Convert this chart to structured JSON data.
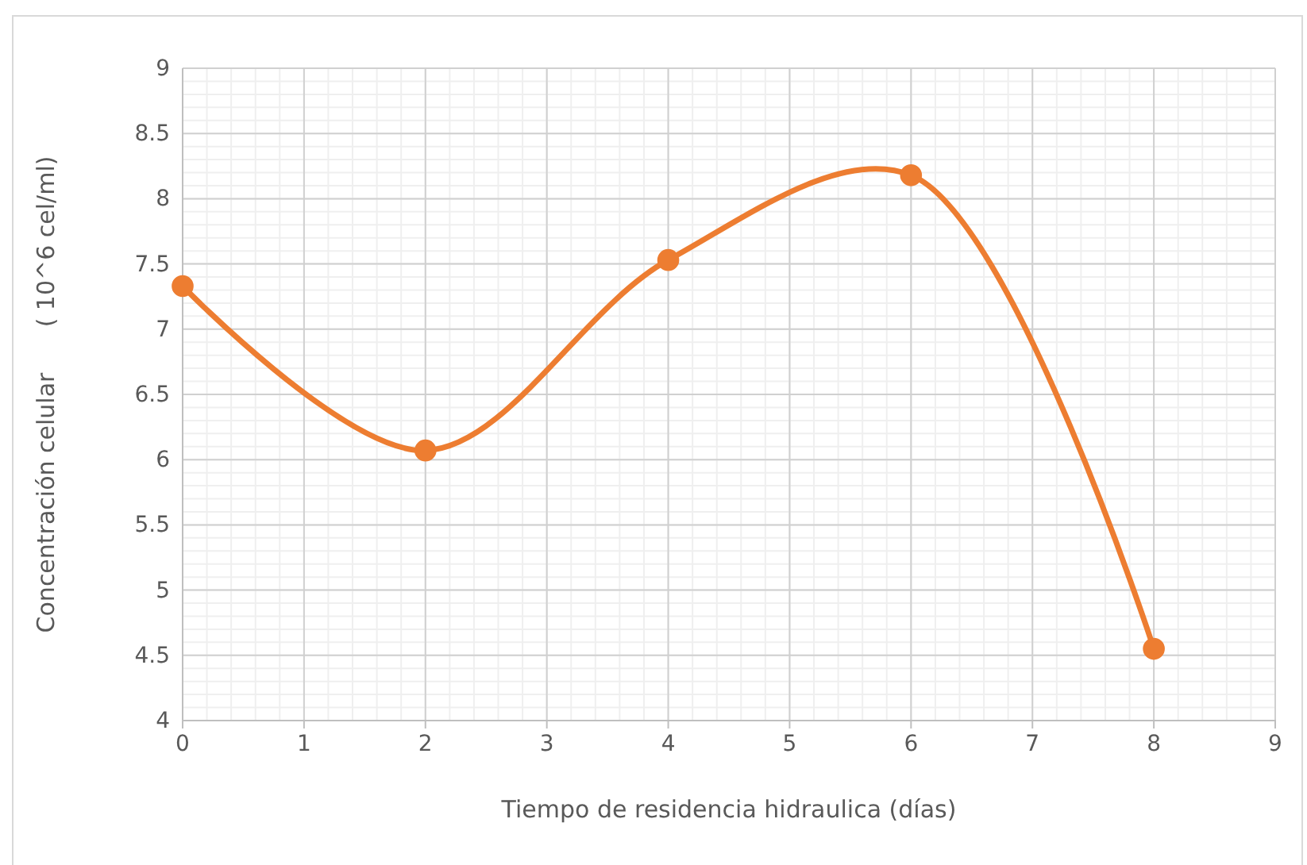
{
  "chart_data": {
    "type": "line",
    "xlabel": "Tiempo de residencia hidraulica (días)",
    "ylabel": "Concentración celular      ( 10^6 cel/ml)",
    "x": [
      0,
      2,
      4,
      6,
      8
    ],
    "series": [
      {
        "color": "#ed7d31",
        "values": [
          7.33,
          6.07,
          7.53,
          8.18,
          4.55
        ]
      }
    ],
    "xlim": [
      0,
      9
    ],
    "xticks": [
      0,
      1,
      2,
      3,
      4,
      5,
      6,
      7,
      8,
      9
    ],
    "ylim": [
      4,
      9
    ],
    "yticks": [
      4,
      {
        "value": 4.5,
        "label": "4.5"
      },
      5,
      {
        "value": 5.5,
        "label": "5.5"
      },
      6,
      {
        "value": 6.5,
        "label": "6.5"
      },
      7,
      {
        "value": 7.5,
        "label": "7.5"
      },
      8,
      {
        "value": 8.5,
        "label": "8.5"
      },
      9
    ],
    "grid": true,
    "marker": "circle",
    "line_style": "solid"
  }
}
